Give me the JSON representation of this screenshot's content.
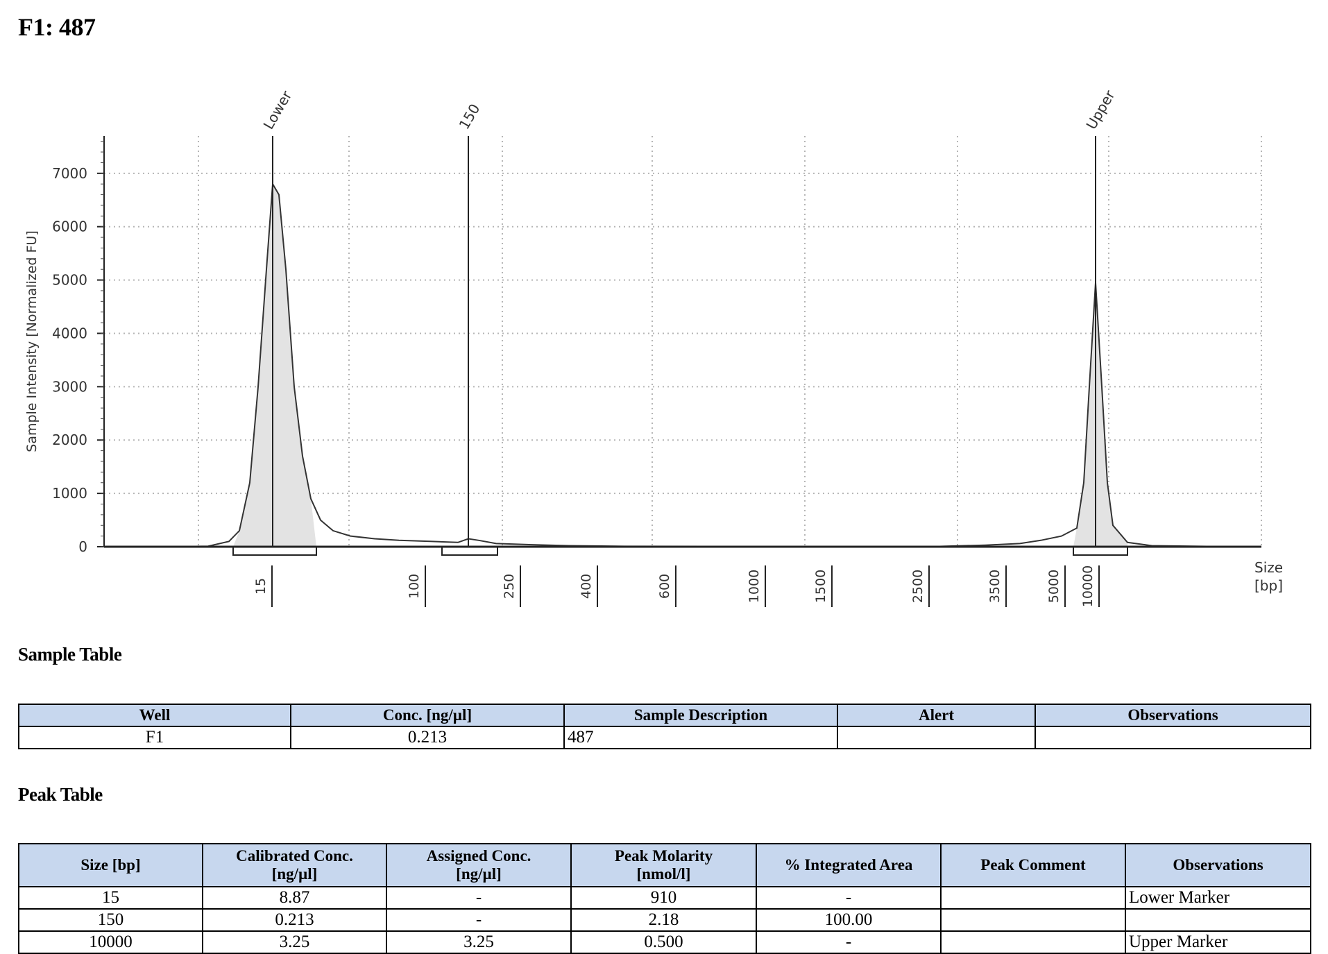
{
  "title": "F1: 487",
  "sections": {
    "sample_heading": "Sample Table",
    "peak_heading": "Peak Table"
  },
  "chart_data": {
    "type": "line",
    "ylabel": "Sample Intensity [Normalized FU]",
    "xlabel": "Size\n[bp]",
    "xlabel_lines": [
      "Size",
      "[bp]"
    ],
    "yticks": [
      0,
      1000,
      2000,
      3000,
      4000,
      5000,
      6000,
      7000
    ],
    "ylim": [
      0,
      7700
    ],
    "xticks": [
      "15",
      "100",
      "250",
      "400",
      "600",
      "1000",
      "1500",
      "2500",
      "3500",
      "5000",
      "10000"
    ],
    "peaks": [
      {
        "label": "Lower",
        "size_bp": "15",
        "height": 6800
      },
      {
        "label": "150",
        "size_bp": "150",
        "height": 150
      },
      {
        "label": "Upper",
        "size_bp": "10000",
        "height": 4950
      }
    ],
    "grid": true,
    "fill_color": "#e3e3e3",
    "line_color": "#333333"
  },
  "sample_table": {
    "headers": [
      "Well",
      "Conc. [ng/µl]",
      "Sample Description",
      "Alert",
      "Observations"
    ],
    "rows": [
      [
        "F1",
        "0.213",
        "487",
        "",
        ""
      ]
    ]
  },
  "peak_table": {
    "headers": [
      "Size [bp]",
      "Calibrated Conc.\n[ng/µl]",
      "Assigned Conc.\n[ng/µl]",
      "Peak Molarity\n[nmol/l]",
      "% Integrated Area",
      "Peak Comment",
      "Observations"
    ],
    "rows": [
      [
        "15",
        "8.87",
        "-",
        "910",
        "-",
        "",
        "Lower Marker"
      ],
      [
        "150",
        "0.213",
        "-",
        "2.18",
        "100.00",
        "",
        ""
      ],
      [
        "10000",
        "3.25",
        "3.25",
        "0.500",
        "-",
        "",
        "Upper Marker"
      ]
    ]
  }
}
